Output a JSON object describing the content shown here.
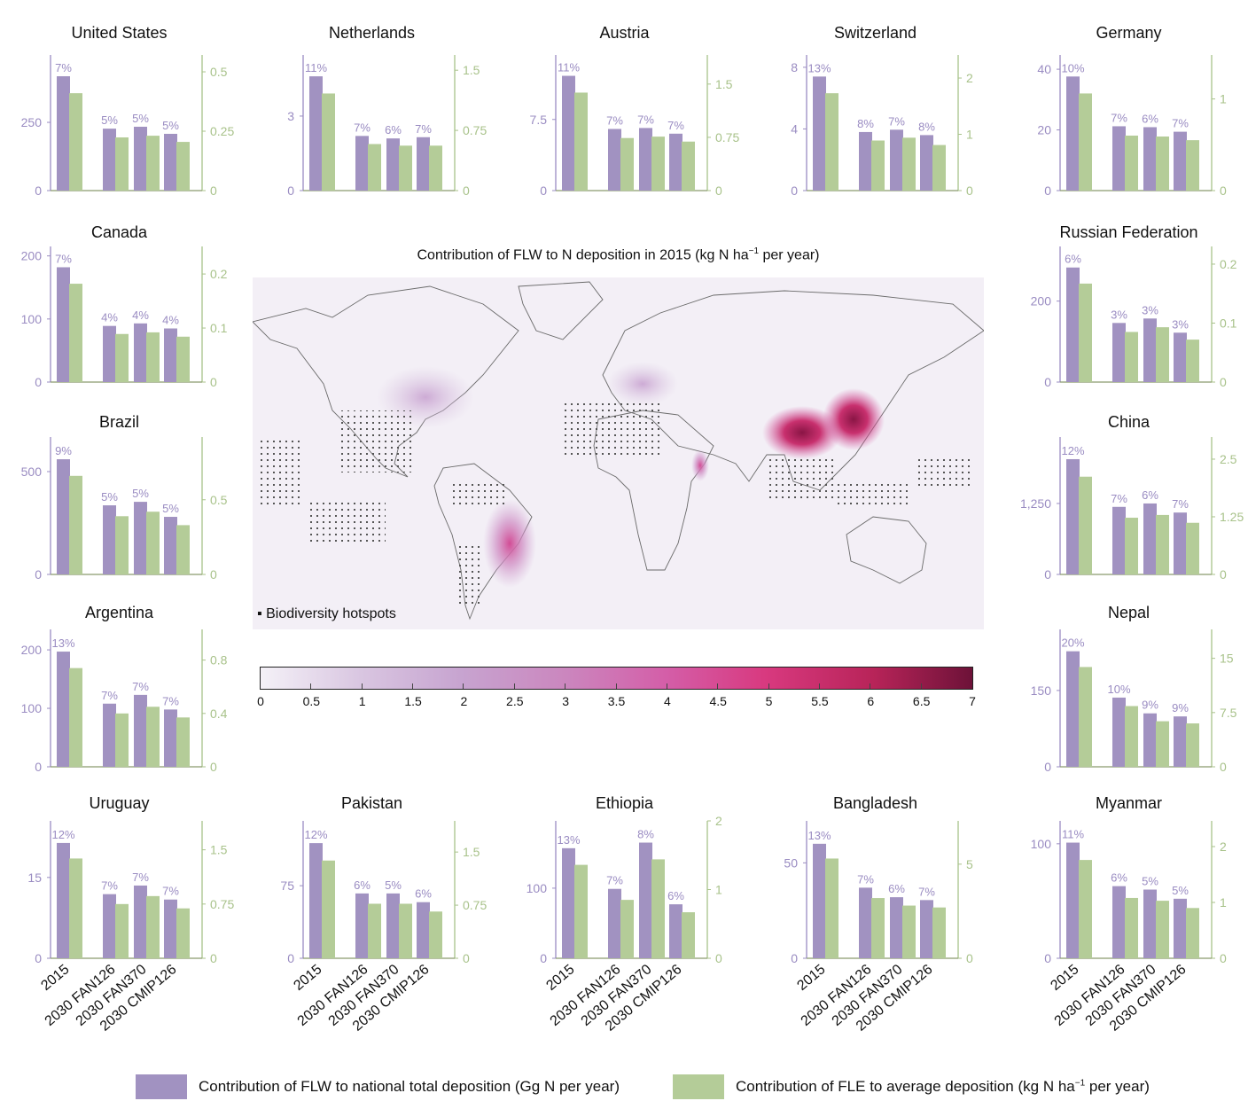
{
  "colors": {
    "flw_national": "#a192c1",
    "fle_average": "#b4cc98",
    "left_axis": "#9a8cc2",
    "right_axis": "#a8c28a"
  },
  "categories": [
    "2015",
    "2030 FAN126",
    "2030 FAN370",
    "2030 CMIP126"
  ],
  "map": {
    "title_pre": "Contribution of FLW to N deposition in 2015 (kg N ha",
    "title_sup": "−1",
    "title_post": " per year)",
    "hotspot_label": "Biodiversity hotspots",
    "colorbar": {
      "min": 0,
      "max": 7,
      "ticks": [
        "0",
        "0.5",
        "1",
        "1.5",
        "2",
        "2.5",
        "3",
        "3.5",
        "4",
        "4.5",
        "5",
        "5.5",
        "6",
        "6.5",
        "7"
      ],
      "colors": [
        "#f4f1f7",
        "#c7a4d0",
        "#d45ea8",
        "#6d1238"
      ]
    }
  },
  "legend": {
    "flw": "Contribution of FLW to national total deposition (Gg N per year)",
    "fle_pre": "Contribution of FLE to average deposition (kg N ha",
    "fle_sup": "−1",
    "fle_post": " per year)"
  },
  "chart_data": [
    {
      "type": "bar",
      "title": "United States",
      "left_ylim": [
        0,
        497
      ],
      "right_ylim": [
        0,
        0.571
      ],
      "left_ticks": [
        0,
        250
      ],
      "right_ticks": [
        0,
        0.25,
        0.5
      ],
      "flw": [
        419,
        227,
        234,
        208
      ],
      "fle": [
        0.41,
        0.224,
        0.231,
        0.205
      ],
      "percent": [
        "7%",
        "5%",
        "5%",
        "5%"
      ]
    },
    {
      "type": "bar",
      "title": "Netherlands",
      "left_ylim": [
        0,
        5.46
      ],
      "right_ylim": [
        0,
        1.69
      ],
      "left_ticks": [
        0,
        3
      ],
      "right_ticks": [
        0,
        0.75,
        1.5
      ],
      "flw": [
        4.6,
        2.2,
        2.1,
        2.15
      ],
      "fle": [
        1.21,
        0.58,
        0.56,
        0.56
      ],
      "percent": [
        "11%",
        "7%",
        "6%",
        "7%"
      ]
    },
    {
      "type": "bar",
      "title": "Austria",
      "left_ylim": [
        0,
        14.3
      ],
      "right_ylim": [
        0,
        1.91
      ],
      "left_ticks": [
        0,
        7.5
      ],
      "right_ticks": [
        0,
        0.75,
        1.5
      ],
      "flw": [
        12.1,
        6.5,
        6.6,
        6.0
      ],
      "fle": [
        1.38,
        0.74,
        0.76,
        0.69
      ],
      "percent": [
        "11%",
        "7%",
        "7%",
        "7%"
      ]
    },
    {
      "type": "bar",
      "title": "Switzerland",
      "left_ylim": [
        0,
        8.8
      ],
      "right_ylim": [
        0,
        2.41
      ],
      "left_ticks": [
        0,
        4,
        8
      ],
      "right_ticks": [
        0,
        1,
        2
      ],
      "flw": [
        7.4,
        3.8,
        3.95,
        3.6
      ],
      "fle": [
        1.73,
        0.89,
        0.94,
        0.81
      ],
      "percent": [
        "13%",
        "8%",
        "7%",
        "8%"
      ]
    },
    {
      "type": "bar",
      "title": "Germany",
      "left_ylim": [
        0,
        44.7
      ],
      "right_ylim": [
        0,
        1.48
      ],
      "left_ticks": [
        0,
        20,
        40
      ],
      "right_ticks": [
        0,
        1
      ],
      "flw": [
        37.6,
        21.2,
        20.9,
        19.4
      ],
      "fle": [
        1.06,
        0.6,
        0.59,
        0.55
      ],
      "percent": [
        "10%",
        "7%",
        "6%",
        "7%"
      ]
    },
    {
      "type": "bar",
      "title": "Canada",
      "left_ylim": [
        0,
        215
      ],
      "right_ylim": [
        0,
        0.251
      ],
      "left_ticks": [
        0,
        100,
        200
      ],
      "right_ticks": [
        0,
        0.1,
        0.2
      ],
      "flw": [
        182,
        89,
        93,
        85
      ],
      "fle": [
        0.182,
        0.089,
        0.092,
        0.084
      ],
      "percent": [
        "7%",
        "4%",
        "4%",
        "4%"
      ]
    },
    {
      "type": "bar",
      "title": "Russian Federation",
      "left_ylim": [
        0,
        335
      ],
      "right_ylim": [
        0,
        0.23
      ],
      "left_ticks": [
        0,
        200
      ],
      "right_ticks": [
        0,
        0.1,
        0.2
      ],
      "flw": [
        283,
        146,
        157,
        122
      ],
      "fle": [
        0.167,
        0.085,
        0.093,
        0.072
      ],
      "percent": [
        "6%",
        "3%",
        "3%",
        "3%"
      ]
    },
    {
      "type": "bar",
      "title": "Brazil",
      "left_ylim": [
        0,
        668
      ],
      "right_ylim": [
        0,
        0.92
      ],
      "left_ticks": [
        0,
        500
      ],
      "right_ticks": [
        0,
        0.5
      ],
      "flw": [
        560,
        336,
        353,
        280
      ],
      "fle": [
        0.66,
        0.39,
        0.42,
        0.33
      ],
      "percent": [
        "9%",
        "5%",
        "5%",
        "5%"
      ]
    },
    {
      "type": "bar",
      "title": "China",
      "left_ylim": [
        0,
        2420
      ],
      "right_ylim": [
        0,
        2.98
      ],
      "left_ticks": [
        0,
        1250
      ],
      "right_ticks": [
        0,
        1.25,
        2.5
      ],
      "flw": [
        2030,
        1190,
        1250,
        1090
      ],
      "fle": [
        2.12,
        1.23,
        1.29,
        1.12
      ],
      "percent": [
        "12%",
        "7%",
        "6%",
        "7%"
      ]
    },
    {
      "type": "bar",
      "title": "Argentina",
      "left_ylim": [
        0,
        235
      ],
      "right_ylim": [
        0,
        1.03
      ],
      "left_ticks": [
        0,
        100,
        200
      ],
      "right_ticks": [
        0,
        0.4,
        0.8
      ],
      "flw": [
        197,
        108,
        123,
        98
      ],
      "fle": [
        0.74,
        0.4,
        0.45,
        0.37
      ],
      "percent": [
        "13%",
        "7%",
        "7%",
        "7%"
      ]
    },
    {
      "type": "bar",
      "title": "Nepal",
      "left_ylim": [
        0,
        270
      ],
      "right_ylim": [
        0,
        19
      ],
      "left_ticks": [
        0,
        150
      ],
      "right_ticks": [
        0,
        7.5,
        15
      ],
      "flw": [
        227,
        136,
        105,
        99
      ],
      "fle": [
        13.8,
        8.4,
        6.3,
        6.0
      ],
      "percent": [
        "20%",
        "10%",
        "9%",
        "9%"
      ]
    },
    {
      "type": "bar",
      "title": "Uruguay",
      "left_ylim": [
        0,
        25.5
      ],
      "right_ylim": [
        0,
        1.9
      ],
      "left_ticks": [
        0,
        15
      ],
      "right_ticks": [
        0,
        0.75,
        1.5
      ],
      "flw": [
        21.4,
        11.9,
        13.5,
        10.9
      ],
      "fle": [
        1.38,
        0.75,
        0.86,
        0.69
      ],
      "percent": [
        "12%",
        "7%",
        "7%",
        "7%"
      ]
    },
    {
      "type": "bar",
      "title": "Pakistan",
      "left_ylim": [
        0,
        142
      ],
      "right_ylim": [
        0,
        1.94
      ],
      "left_ticks": [
        0,
        75
      ],
      "right_ticks": [
        0,
        0.75,
        1.5
      ],
      "flw": [
        119,
        67,
        67,
        58
      ],
      "fle": [
        1.38,
        0.77,
        0.77,
        0.66
      ],
      "percent": [
        "12%",
        "6%",
        "5%",
        "6%"
      ]
    },
    {
      "type": "bar",
      "title": "Ethiopia",
      "left_ylim": [
        0,
        196
      ],
      "right_ylim": [
        0,
        2.0
      ],
      "left_ticks": [
        0,
        100
      ],
      "right_ticks": [
        0,
        1,
        2
      ],
      "flw": [
        157,
        99,
        165,
        77
      ],
      "fle": [
        1.36,
        0.85,
        1.44,
        0.67
      ],
      "percent": [
        "13%",
        "7%",
        "8%",
        "6%"
      ]
    },
    {
      "type": "bar",
      "title": "Bangladesh",
      "left_ylim": [
        0,
        72
      ],
      "right_ylim": [
        0,
        7.3
      ],
      "left_ticks": [
        0,
        50
      ],
      "right_ticks": [
        0,
        5
      ],
      "flw": [
        60,
        37,
        32,
        30.5
      ],
      "fle": [
        5.3,
        3.2,
        2.8,
        2.7
      ],
      "percent": [
        "13%",
        "7%",
        "6%",
        "7%"
      ]
    },
    {
      "type": "bar",
      "title": "Myanmar",
      "left_ylim": [
        0,
        120
      ],
      "right_ylim": [
        0,
        2.46
      ],
      "left_ticks": [
        0,
        100
      ],
      "right_ticks": [
        0,
        1,
        2
      ],
      "flw": [
        101,
        63,
        60,
        52
      ],
      "fle": [
        1.76,
        1.08,
        1.03,
        0.9
      ],
      "percent": [
        "11%",
        "6%",
        "5%",
        "5%"
      ]
    }
  ]
}
